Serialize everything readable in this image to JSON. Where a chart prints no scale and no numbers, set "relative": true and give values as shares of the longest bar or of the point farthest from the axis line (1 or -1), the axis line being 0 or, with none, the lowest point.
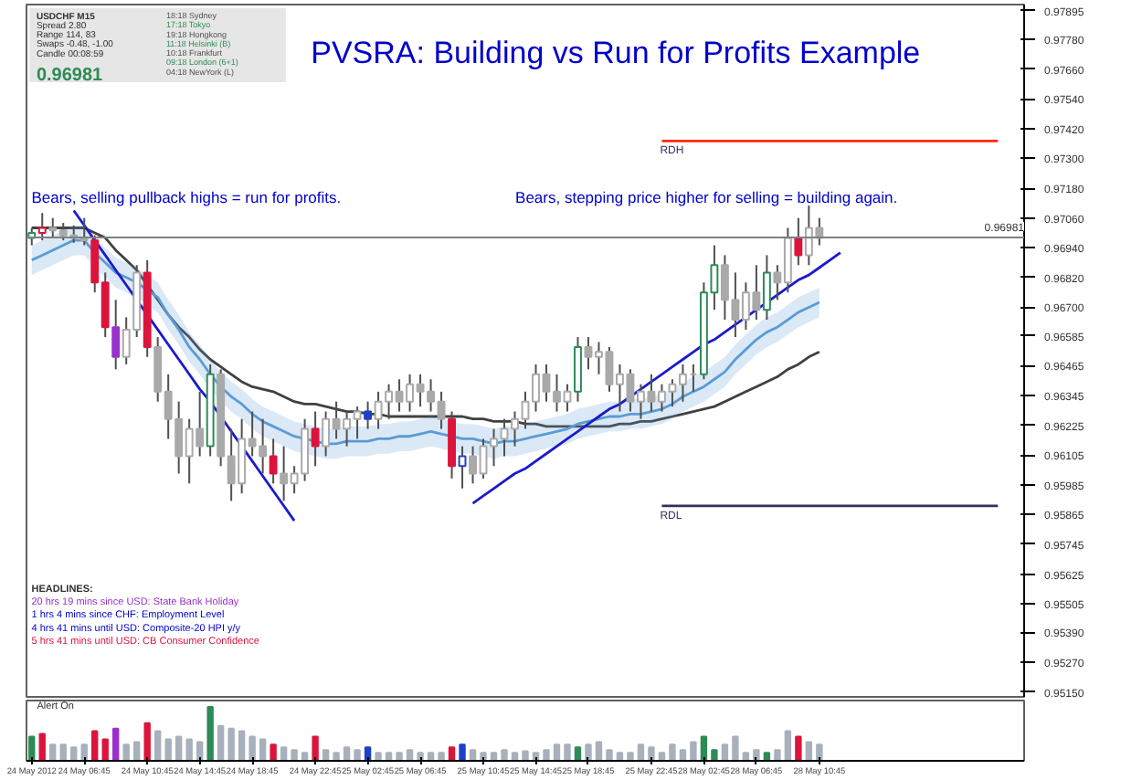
{
  "chart_data": [
    {
      "type": "candlestick",
      "title": "PVSRA: Building vs Run for Profits Example",
      "categories": [
        null,
        null,
        null,
        null,
        null,
        null,
        null,
        null,
        null,
        null,
        null,
        null,
        null,
        null,
        null,
        null,
        null,
        null,
        null,
        null,
        null,
        null,
        null,
        null,
        null,
        null,
        null,
        null,
        null,
        null,
        null,
        null,
        null,
        null,
        null,
        null,
        null,
        null,
        null,
        null,
        null,
        null,
        null,
        null,
        null,
        null,
        null,
        null,
        null,
        null,
        null,
        null,
        null,
        null,
        null,
        null,
        null,
        null,
        null,
        null,
        null,
        null,
        null,
        null,
        null,
        null,
        null,
        null,
        null,
        null,
        null,
        null,
        null,
        null,
        null,
        null,
        null,
        null,
        null,
        null,
        null,
        null,
        null,
        null,
        null,
        null,
        null,
        null,
        null,
        null,
        null,
        null,
        null,
        null,
        null
      ],
      "ohlc": [
        [
          0.9698,
          0.9702,
          0.9695,
          0.97
        ],
        [
          0.97,
          0.9708,
          0.9697,
          0.9702
        ],
        [
          0.9702,
          0.9706,
          0.9698,
          0.9701
        ],
        [
          0.9701,
          0.9704,
          0.9697,
          0.9699
        ],
        [
          0.9699,
          0.9703,
          0.9696,
          0.9698
        ],
        [
          0.9698,
          0.9706,
          0.9695,
          0.9697
        ],
        [
          0.9697,
          0.9699,
          0.9676,
          0.968
        ],
        [
          0.968,
          0.9684,
          0.9658,
          0.9662
        ],
        [
          0.9662,
          0.9673,
          0.9645,
          0.965
        ],
        [
          0.965,
          0.9666,
          0.9647,
          0.9661
        ],
        [
          0.9661,
          0.9687,
          0.9658,
          0.9684
        ],
        [
          0.9684,
          0.9689,
          0.965,
          0.9654
        ],
        [
          0.9654,
          0.9658,
          0.9632,
          0.9636
        ],
        [
          0.9636,
          0.9643,
          0.9617,
          0.9625
        ],
        [
          0.9625,
          0.9632,
          0.9603,
          0.961
        ],
        [
          0.961,
          0.9625,
          0.9599,
          0.9621
        ],
        [
          0.9621,
          0.9636,
          0.961,
          0.9614
        ],
        [
          0.9614,
          0.9647,
          0.961,
          0.9643
        ],
        [
          0.9643,
          0.9645,
          0.9606,
          0.961
        ],
        [
          0.961,
          0.9621,
          0.9592,
          0.9599
        ],
        [
          0.9599,
          0.9625,
          0.9595,
          0.9617
        ],
        [
          0.9617,
          0.9628,
          0.961,
          0.9614
        ],
        [
          0.9614,
          0.9625,
          0.9603,
          0.961
        ],
        [
          0.961,
          0.9617,
          0.9599,
          0.9603
        ],
        [
          0.9603,
          0.9614,
          0.9592,
          0.9599
        ],
        [
          0.9599,
          0.9606,
          0.9595,
          0.9603
        ],
        [
          0.9603,
          0.9625,
          0.96,
          0.9621
        ],
        [
          0.9621,
          0.9628,
          0.9606,
          0.9614
        ],
        [
          0.9614,
          0.9628,
          0.961,
          0.9625
        ],
        [
          0.9625,
          0.9632,
          0.9617,
          0.9621
        ],
        [
          0.9621,
          0.9628,
          0.9614,
          0.9625
        ],
        [
          0.9625,
          0.963,
          0.9617,
          0.9628
        ],
        [
          0.9628,
          0.9632,
          0.9621,
          0.9625
        ],
        [
          0.9625,
          0.9636,
          0.9621,
          0.9632
        ],
        [
          0.9632,
          0.9639,
          0.9625,
          0.9636
        ],
        [
          0.9636,
          0.9641,
          0.9628,
          0.9632
        ],
        [
          0.9632,
          0.9643,
          0.9628,
          0.9639
        ],
        [
          0.9639,
          0.9643,
          0.963,
          0.9636
        ],
        [
          0.9636,
          0.9641,
          0.9628,
          0.9632
        ],
        [
          0.9632,
          0.9636,
          0.9621,
          0.9625
        ],
        [
          0.9625,
          0.9628,
          0.9601,
          0.9606
        ],
        [
          0.9606,
          0.9614,
          0.9597,
          0.961
        ],
        [
          0.961,
          0.9614,
          0.9599,
          0.9603
        ],
        [
          0.9603,
          0.9617,
          0.9601,
          0.9614
        ],
        [
          0.9614,
          0.9621,
          0.9606,
          0.9617
        ],
        [
          0.9617,
          0.9625,
          0.961,
          0.9621
        ],
        [
          0.9621,
          0.9628,
          0.9614,
          0.9625
        ],
        [
          0.9625,
          0.9636,
          0.9621,
          0.9632
        ],
        [
          0.9632,
          0.9647,
          0.9628,
          0.9643
        ],
        [
          0.9643,
          0.9647,
          0.9632,
          0.9636
        ],
        [
          0.9636,
          0.9643,
          0.9628,
          0.9632
        ],
        [
          0.9632,
          0.9639,
          0.9628,
          0.9636
        ],
        [
          0.9636,
          0.9658,
          0.9632,
          0.9654
        ],
        [
          0.9654,
          0.9658,
          0.9645,
          0.965
        ],
        [
          0.965,
          0.9656,
          0.9643,
          0.9652
        ],
        [
          0.9652,
          0.9654,
          0.9636,
          0.9639
        ],
        [
          0.9639,
          0.9647,
          0.9628,
          0.9643
        ],
        [
          0.9643,
          0.9645,
          0.9628,
          0.9632
        ],
        [
          0.9632,
          0.9639,
          0.9625,
          0.9636
        ],
        [
          0.9636,
          0.9643,
          0.9628,
          0.9632
        ],
        [
          0.9632,
          0.9639,
          0.9628,
          0.9636
        ],
        [
          0.9636,
          0.9641,
          0.963,
          0.9639
        ],
        [
          0.9639,
          0.9647,
          0.9632,
          0.9643
        ],
        [
          0.9643,
          0.9647,
          0.9636,
          0.9643
        ],
        [
          0.9643,
          0.968,
          0.9641,
          0.9676
        ],
        [
          0.9676,
          0.9695,
          0.9669,
          0.9687
        ],
        [
          0.9687,
          0.9691,
          0.9665,
          0.9673
        ],
        [
          0.9673,
          0.9684,
          0.9658,
          0.9665
        ],
        [
          0.9665,
          0.968,
          0.9661,
          0.9676
        ],
        [
          0.9676,
          0.9687,
          0.9665,
          0.9669
        ],
        [
          0.9669,
          0.9691,
          0.9665,
          0.9684
        ],
        [
          0.9684,
          0.9687,
          0.9673,
          0.968
        ],
        [
          0.968,
          0.9702,
          0.9676,
          0.9698
        ],
        [
          0.9698,
          0.9706,
          0.9687,
          0.9691
        ],
        [
          0.9691,
          0.9711,
          0.9687,
          0.9702
        ],
        [
          0.9702,
          0.9706,
          0.9695,
          0.9698
        ],
        null,
        null,
        null,
        null,
        null,
        null,
        null,
        null,
        null,
        null,
        null,
        null,
        null,
        null,
        null,
        null,
        null,
        null,
        null
      ],
      "colors": [
        "#2e8b57",
        "#dc143c",
        "#a9a9a9",
        "#a9a9a9",
        "#a9a9a9",
        "#a9a9a9",
        "#dc143c",
        "#dc143c",
        "#9932cc",
        "#a9a9a9",
        "#a9a9a9",
        "#dc143c",
        "#a9a9a9",
        "#a9a9a9",
        "#a9a9a9",
        "#a9a9a9",
        "#a9a9a9",
        "#2e8b57",
        "#a9a9a9",
        "#a9a9a9",
        "#a9a9a9",
        "#a9a9a9",
        "#a9a9a9",
        "#dc143c",
        "#a9a9a9",
        "#a9a9a9",
        "#a9a9a9",
        "#dc143c",
        "#a9a9a9",
        "#a9a9a9",
        "#a9a9a9",
        "#a9a9a9",
        "#1e40c8",
        "#a9a9a9",
        "#a9a9a9",
        "#a9a9a9",
        "#a9a9a9",
        "#a9a9a9",
        "#a9a9a9",
        "#a9a9a9",
        "#dc143c",
        "#1e40c8",
        "#a9a9a9",
        "#a9a9a9",
        "#a9a9a9",
        "#a9a9a9",
        "#a9a9a9",
        "#a9a9a9",
        "#a9a9a9",
        "#a9a9a9",
        "#a9a9a9",
        "#a9a9a9",
        "#2e8b57",
        "#a9a9a9",
        "#a9a9a9",
        "#a9a9a9",
        "#a9a9a9",
        "#a9a9a9",
        "#a9a9a9",
        "#a9a9a9",
        "#a9a9a9",
        "#a9a9a9",
        "#a9a9a9",
        "#a9a9a9",
        "#2e8b57",
        "#2e8b57",
        "#a9a9a9",
        "#a9a9a9",
        "#a9a9a9",
        "#a9a9a9",
        "#2e8b57",
        "#a9a9a9",
        "#a9a9a9",
        "#dc143c",
        "#a9a9a9",
        "#a9a9a9",
        null,
        null,
        null,
        null,
        null,
        null,
        null,
        null,
        null,
        null,
        null,
        null,
        null,
        null,
        null,
        null,
        null,
        null,
        null
      ],
      "series": [
        {
          "type": "line",
          "color": "#404040",
          "values": [
            0.9702,
            0.9702,
            0.9702,
            0.9702,
            0.9702,
            0.9702,
            0.97,
            0.9698,
            0.9693,
            0.9689,
            0.9685,
            0.9679,
            0.9673,
            0.9667,
            0.9662,
            0.9658,
            0.9653,
            0.9649,
            0.9646,
            0.9643,
            0.964,
            0.9638,
            0.9637,
            0.9636,
            0.9634,
            0.9632,
            0.9631,
            0.9631,
            0.963,
            0.9629,
            0.9628,
            0.9628,
            0.9627,
            0.9627,
            0.9626,
            0.9626,
            0.9626,
            0.9626,
            0.9626,
            0.9626,
            0.9626,
            0.9626,
            0.9625,
            0.9625,
            0.9624,
            0.9624,
            0.9624,
            0.9623,
            0.9623,
            0.9622,
            0.9622,
            0.9622,
            0.9622,
            0.9622,
            0.9622,
            0.9622,
            0.9623,
            0.9623,
            0.9624,
            0.9624,
            0.9625,
            0.9626,
            0.9627,
            0.9628,
            0.9629,
            0.963,
            0.9632,
            0.9634,
            0.9636,
            0.9638,
            0.964,
            0.9642,
            0.9645,
            0.9647,
            0.965,
            0.9652,
            null,
            null,
            null,
            null,
            null,
            null,
            null,
            null,
            null,
            null,
            null,
            null,
            null,
            null,
            null,
            null,
            null,
            null,
            null
          ]
        },
        {
          "type": "line",
          "color": "#5b9bd5",
          "values": [
            0.9689,
            0.9691,
            0.9693,
            0.9695,
            0.9697,
            0.9697,
            0.9692,
            0.9688,
            0.9684,
            0.9682,
            0.968,
            0.9677,
            0.9674,
            0.9667,
            0.9661,
            0.9654,
            0.9649,
            0.9643,
            0.9638,
            0.9634,
            0.9631,
            0.9627,
            0.9624,
            0.9622,
            0.962,
            0.9618,
            0.9617,
            0.9616,
            0.9615,
            0.9615,
            0.9616,
            0.9616,
            0.9616,
            0.9617,
            0.9617,
            0.9618,
            0.9618,
            0.9619,
            0.962,
            0.9619,
            0.9618,
            0.9617,
            0.9617,
            0.9616,
            0.9615,
            0.9616,
            0.9616,
            0.9617,
            0.9618,
            0.9619,
            0.962,
            0.9621,
            0.9623,
            0.9624,
            0.9625,
            0.9626,
            0.9626,
            0.9627,
            0.9627,
            0.9628,
            0.9629,
            0.9631,
            0.9634,
            0.9636,
            0.9638,
            0.9641,
            0.9644,
            0.9649,
            0.9653,
            0.9657,
            0.966,
            0.9662,
            0.9665,
            0.9668,
            0.967,
            0.9672,
            null,
            null,
            null,
            null,
            null,
            null,
            null,
            null,
            null,
            null,
            null,
            null,
            null,
            null,
            null,
            null,
            null,
            null,
            null
          ],
          "lower": [
            0.9683,
            0.9685,
            0.9687,
            0.9689,
            0.9691,
            0.9691,
            0.9686,
            0.9682,
            0.9678,
            0.9676,
            0.9674,
            0.9671,
            0.9668,
            0.9661,
            0.9655,
            0.9648,
            0.9643,
            0.9637,
            0.9632,
            0.9628,
            0.9625,
            0.9621,
            0.9618,
            0.9616,
            0.9614,
            0.9612,
            0.9611,
            0.961,
            0.9609,
            0.9609,
            0.961,
            0.961,
            0.961,
            0.9611,
            0.9611,
            0.9612,
            0.9612,
            0.9613,
            0.9614,
            0.9613,
            0.9612,
            0.9611,
            0.9611,
            0.961,
            0.9609,
            0.961,
            0.961,
            0.9611,
            0.9612,
            0.9613,
            0.9614,
            0.9615,
            0.9617,
            0.9618,
            0.9619,
            0.962,
            0.962,
            0.9621,
            0.9621,
            0.9622,
            0.9623,
            0.9625,
            0.9628,
            0.963,
            0.9632,
            0.9635,
            0.9638,
            0.9643,
            0.9647,
            0.9651,
            0.9654,
            0.9656,
            0.9659,
            0.9662,
            0.9664,
            0.9666,
            null,
            null,
            null,
            null,
            null,
            null,
            null,
            null,
            null,
            null,
            null,
            null,
            null,
            null,
            null,
            null,
            null,
            null,
            null
          ],
          "upper": [
            0.9695,
            0.9697,
            0.9699,
            0.9701,
            0.9703,
            0.9703,
            0.9698,
            0.9694,
            0.969,
            0.9688,
            0.9686,
            0.9683,
            0.968,
            0.9673,
            0.9667,
            0.966,
            0.9655,
            0.9649,
            0.9644,
            0.964,
            0.9637,
            0.9633,
            0.963,
            0.9628,
            0.9626,
            0.9624,
            0.9623,
            0.9622,
            0.9621,
            0.9621,
            0.9622,
            0.9622,
            0.9622,
            0.9623,
            0.9623,
            0.9624,
            0.9624,
            0.9625,
            0.9626,
            0.9625,
            0.9624,
            0.9623,
            0.9623,
            0.9622,
            0.9621,
            0.9622,
            0.9622,
            0.9623,
            0.9624,
            0.9625,
            0.9626,
            0.9627,
            0.9629,
            0.963,
            0.9631,
            0.9632,
            0.9632,
            0.9633,
            0.9633,
            0.9634,
            0.9635,
            0.9637,
            0.964,
            0.9642,
            0.9644,
            0.9647,
            0.965,
            0.9655,
            0.9659,
            0.9663,
            0.9666,
            0.9668,
            0.9671,
            0.9674,
            0.9676,
            0.9678,
            null,
            null,
            null,
            null,
            null,
            null,
            null,
            null,
            null,
            null,
            null,
            null,
            null,
            null,
            null,
            null,
            null,
            null,
            null
          ]
        },
        {
          "type": "line",
          "color": "#1a1acc",
          "values": [
            null,
            null,
            null,
            null,
            0.9709,
            0.9703,
            0.9697,
            0.9691,
            0.9685,
            0.9679,
            0.9673,
            0.9667,
            0.9661,
            0.9655,
            0.9649,
            0.9643,
            0.9637,
            0.9632,
            0.9626,
            0.962,
            0.9614,
            0.9608,
            0.9602,
            0.9596,
            0.959,
            0.9584,
            null,
            null,
            null,
            null,
            null,
            null,
            null,
            null,
            null,
            null,
            null,
            null,
            null,
            null,
            null,
            null,
            null,
            null,
            null,
            null,
            null,
            null,
            null,
            null,
            null,
            null,
            null,
            null,
            null,
            null,
            null,
            null,
            null,
            null,
            null,
            null,
            null,
            null,
            null,
            null,
            null,
            null,
            null,
            null,
            null,
            null,
            null,
            null,
            null,
            null,
            null,
            null,
            null,
            null,
            null,
            null,
            null,
            null,
            null,
            null,
            null,
            null,
            null,
            null,
            null,
            null,
            null,
            null,
            null
          ]
        },
        {
          "type": "line",
          "color": "#1a1acc",
          "values": [
            null,
            null,
            null,
            null,
            null,
            null,
            null,
            null,
            null,
            null,
            null,
            null,
            null,
            null,
            null,
            null,
            null,
            null,
            null,
            null,
            null,
            null,
            null,
            null,
            null,
            null,
            null,
            null,
            null,
            null,
            null,
            null,
            null,
            null,
            null,
            null,
            null,
            null,
            null,
            null,
            null,
            null,
            0.9591,
            0.9594,
            0.9597,
            0.96,
            0.9603,
            0.9605,
            0.9608,
            0.9611,
            0.9614,
            0.9617,
            0.962,
            0.9623,
            0.9626,
            0.9629,
            0.9631,
            0.9634,
            0.9637,
            0.964,
            0.9643,
            0.9646,
            0.9649,
            0.9652,
            0.9655,
            0.9657,
            0.966,
            0.9663,
            0.9666,
            0.9669,
            0.9672,
            0.9675,
            0.9678,
            0.9681,
            0.9683,
            0.9686,
            0.9689,
            0.9692,
            null,
            null,
            null,
            null,
            null,
            null,
            null,
            null,
            null,
            null,
            null,
            null,
            null,
            null,
            null,
            null,
            null
          ]
        },
        {
          "type": "line",
          "color": "#ff2a00",
          "values": [
            null,
            null,
            null,
            null,
            null,
            null,
            null,
            null,
            null,
            null,
            null,
            null,
            null,
            null,
            null,
            null,
            null,
            null,
            null,
            null,
            null,
            null,
            null,
            null,
            null,
            null,
            null,
            null,
            null,
            null,
            null,
            null,
            null,
            null,
            null,
            null,
            null,
            null,
            null,
            null,
            null,
            null,
            null,
            null,
            null,
            null,
            null,
            null,
            null,
            null,
            null,
            null,
            null,
            null,
            null,
            null,
            null,
            null,
            null,
            null,
            0.9737,
            0.9737,
            0.9737,
            0.9737,
            0.9737,
            0.9737,
            0.9737,
            0.9737,
            0.9737,
            0.9737,
            0.9737,
            0.9737,
            0.9737,
            0.9737,
            0.9737,
            0.9737,
            0.9737,
            0.9737,
            0.9737,
            0.9737,
            0.9737,
            0.9737,
            0.9737,
            0.9737,
            0.9737,
            0.9737,
            0.9737,
            0.9737,
            0.9737,
            0.9737,
            0.9737,
            0.9737,
            0.9737,
            null,
            null
          ]
        },
        {
          "type": "line",
          "color": "#303060",
          "values": [
            null,
            null,
            null,
            null,
            null,
            null,
            null,
            null,
            null,
            null,
            null,
            null,
            null,
            null,
            null,
            null,
            null,
            null,
            null,
            null,
            null,
            null,
            null,
            null,
            null,
            null,
            null,
            null,
            null,
            null,
            null,
            null,
            null,
            null,
            null,
            null,
            null,
            null,
            null,
            null,
            null,
            null,
            null,
            null,
            null,
            null,
            null,
            null,
            null,
            null,
            null,
            null,
            null,
            null,
            null,
            null,
            null,
            null,
            null,
            null,
            0.959,
            0.959,
            0.959,
            0.959,
            0.959,
            0.959,
            0.959,
            0.959,
            0.959,
            0.959,
            0.959,
            0.959,
            0.959,
            0.959,
            0.959,
            0.959,
            0.959,
            0.959,
            0.959,
            0.959,
            0.959,
            0.959,
            0.959,
            0.959,
            0.959,
            0.959,
            0.959,
            0.959,
            0.959,
            0.959,
            0.959,
            0.959,
            0.959,
            null,
            null
          ]
        }
      ],
      "ref_lines": [
        {
          "axis": "y",
          "value": 0.96981,
          "label": "0.96981",
          "color": "#808080"
        }
      ],
      "annotations": [
        "Bears, selling pullback highs = run for profits.",
        "Bears, stepping price higher for selling = building again.",
        {
          "text": "RDH",
          "y": 0.9737
        },
        {
          "text": "RDL",
          "y": 0.959
        }
      ],
      "ylim": [
        0.9513,
        0.9792
      ],
      "yticks": [
        {
          "value": 0.9515,
          "label": "0.95150"
        },
        {
          "value": 0.9527,
          "label": "0.95270"
        },
        {
          "value": 0.9539,
          "label": "0.95390"
        },
        {
          "value": 0.95505,
          "label": "0.95505"
        },
        {
          "value": 0.95625,
          "label": "0.95625"
        },
        {
          "value": 0.95745,
          "label": "0.95745"
        },
        {
          "value": 0.95865,
          "label": "0.95865"
        },
        {
          "value": 0.95985,
          "label": "0.95985"
        },
        {
          "value": 0.96105,
          "label": "0.96105"
        },
        {
          "value": 0.96225,
          "label": "0.96225"
        },
        {
          "value": 0.96345,
          "label": "0.96345"
        },
        {
          "value": 0.96465,
          "label": "0.96465"
        },
        {
          "value": 0.96585,
          "label": "0.96585"
        },
        {
          "value": 0.967,
          "label": "0.96700"
        },
        {
          "value": 0.9682,
          "label": "0.96820"
        },
        {
          "value": 0.9694,
          "label": "0.96940"
        },
        {
          "value": 0.9706,
          "label": "0.97060"
        },
        {
          "value": 0.9718,
          "label": "0.97180"
        },
        {
          "value": 0.973,
          "label": "0.97300"
        },
        {
          "value": 0.9742,
          "label": "0.97420"
        },
        {
          "value": 0.9754,
          "label": "0.97540"
        },
        {
          "value": 0.9766,
          "label": "0.97660"
        },
        {
          "value": 0.9778,
          "label": "0.97780"
        },
        {
          "value": 0.97895,
          "label": "0.97895"
        }
      ],
      "tick_labels": "y"
    },
    {
      "type": "other",
      "annotations": [
        "USDCHF  M15",
        "Spread  2.80",
        "Range  114, 83",
        "Swaps  -0.48, -1.00",
        "Candle  00:08:59",
        "0.96981",
        "18:18  Sydney",
        "17:18  Tokyo",
        "19:18  Hongkong",
        "11:18  Helsinki (B)",
        "10:18  Frankfurt",
        "09:18  London (6+1)",
        "04:18  NewYork (L)"
      ]
    },
    {
      "type": "other",
      "annotations": [
        "HEADLINES:",
        "20 hrs 19 mins since USD: State Bank Holiday",
        "1 hrs 4 mins since CHF: Employment Level",
        "4 hrs 41 mins until USD: Composite-20 HPI y/y",
        "5 hrs 41 mins until USD: CB Consumer Confidence"
      ],
      "colors": [
        "#303030",
        "#9932cc",
        "#0000cc",
        "#0000cc",
        "#dc143c"
      ]
    },
    {
      "type": "bar",
      "relative": true,
      "annotations": [
        "Alert On"
      ],
      "categories": [
        "24 May 2012",
        null,
        null,
        null,
        null,
        "24 May 06:45",
        null,
        null,
        null,
        null,
        null,
        "24 May 10:45",
        null,
        null,
        null,
        null,
        "24 May 14:45",
        null,
        null,
        null,
        null,
        "24 May 18:45",
        null,
        null,
        null,
        null,
        null,
        "24 May 22:45",
        null,
        null,
        null,
        null,
        "25 May 02:45",
        null,
        null,
        null,
        null,
        "25 May 06:45",
        null,
        null,
        null,
        null,
        null,
        "25 May 10:45",
        null,
        null,
        null,
        null,
        "25 May 14:45",
        null,
        null,
        null,
        null,
        "25 May 18:45",
        null,
        null,
        null,
        null,
        null,
        "25 May 22:45",
        null,
        null,
        null,
        null,
        "28 May 02:45",
        null,
        null,
        null,
        null,
        "28 May 06:45",
        null,
        null,
        null,
        null,
        null,
        "28 May 10:45",
        null,
        null,
        null,
        null,
        null,
        null,
        null,
        null,
        null,
        null,
        null,
        null,
        null,
        null,
        null,
        null,
        null,
        null,
        null
      ],
      "values": [
        0.45,
        0.5,
        0.3,
        0.3,
        0.25,
        0.3,
        0.55,
        0.4,
        0.6,
        0.3,
        0.35,
        0.7,
        0.55,
        0.4,
        0.45,
        0.4,
        0.35,
        1.0,
        0.65,
        0.6,
        0.55,
        0.45,
        0.4,
        0.3,
        0.25,
        0.2,
        0.15,
        0.45,
        0.2,
        0.15,
        0.25,
        0.2,
        0.25,
        0.15,
        0.15,
        0.15,
        0.2,
        0.15,
        0.15,
        0.15,
        0.25,
        0.3,
        0.2,
        0.15,
        0.15,
        0.2,
        0.15,
        0.18,
        0.15,
        0.2,
        0.3,
        0.3,
        0.25,
        0.3,
        0.35,
        0.2,
        0.15,
        0.15,
        0.3,
        0.25,
        0.15,
        0.3,
        0.2,
        0.35,
        0.45,
        0.2,
        0.3,
        0.45,
        0.15,
        0.2,
        0.15,
        0.2,
        0.55,
        0.45,
        0.35,
        0.3,
        null,
        null,
        null,
        null,
        null,
        null,
        null,
        null,
        null,
        null,
        null,
        null,
        null,
        null,
        null,
        null,
        null,
        null,
        null
      ],
      "colors": [
        "#2e8b57",
        "#dc143c",
        "#a8b0bc",
        "#a8b0bc",
        "#a8b0bc",
        "#a8b0bc",
        "#dc143c",
        "#dc143c",
        "#9932cc",
        "#a8b0bc",
        "#a8b0bc",
        "#dc143c",
        "#a8b0bc",
        "#a8b0bc",
        "#a8b0bc",
        "#a8b0bc",
        "#a8b0bc",
        "#2e8b57",
        "#a8b0bc",
        "#a8b0bc",
        "#a8b0bc",
        "#a8b0bc",
        "#a8b0bc",
        "#dc143c",
        "#a8b0bc",
        "#a8b0bc",
        "#a8b0bc",
        "#dc143c",
        "#a8b0bc",
        "#a8b0bc",
        "#a8b0bc",
        "#a8b0bc",
        "#1e40c8",
        "#a8b0bc",
        "#a8b0bc",
        "#a8b0bc",
        "#a8b0bc",
        "#a8b0bc",
        "#a8b0bc",
        "#a8b0bc",
        "#dc143c",
        "#1e40c8",
        "#a8b0bc",
        "#a8b0bc",
        "#a8b0bc",
        "#a8b0bc",
        "#a8b0bc",
        "#a8b0bc",
        "#a8b0bc",
        "#a8b0bc",
        "#a8b0bc",
        "#a8b0bc",
        "#2e8b57",
        "#a8b0bc",
        "#a8b0bc",
        "#a8b0bc",
        "#a8b0bc",
        "#a8b0bc",
        "#a8b0bc",
        "#a8b0bc",
        "#a8b0bc",
        "#a8b0bc",
        "#a8b0bc",
        "#a8b0bc",
        "#2e8b57",
        "#2e8b57",
        "#a8b0bc",
        "#a8b0bc",
        "#a8b0bc",
        "#a8b0bc",
        "#2e8b57",
        "#a8b0bc",
        "#a8b0bc",
        "#dc143c",
        "#a8b0bc",
        "#a8b0bc",
        null,
        null,
        null,
        null,
        null,
        null,
        null,
        null,
        null,
        null,
        null,
        null,
        null,
        null,
        null,
        null,
        null,
        null,
        null
      ]
    }
  ]
}
